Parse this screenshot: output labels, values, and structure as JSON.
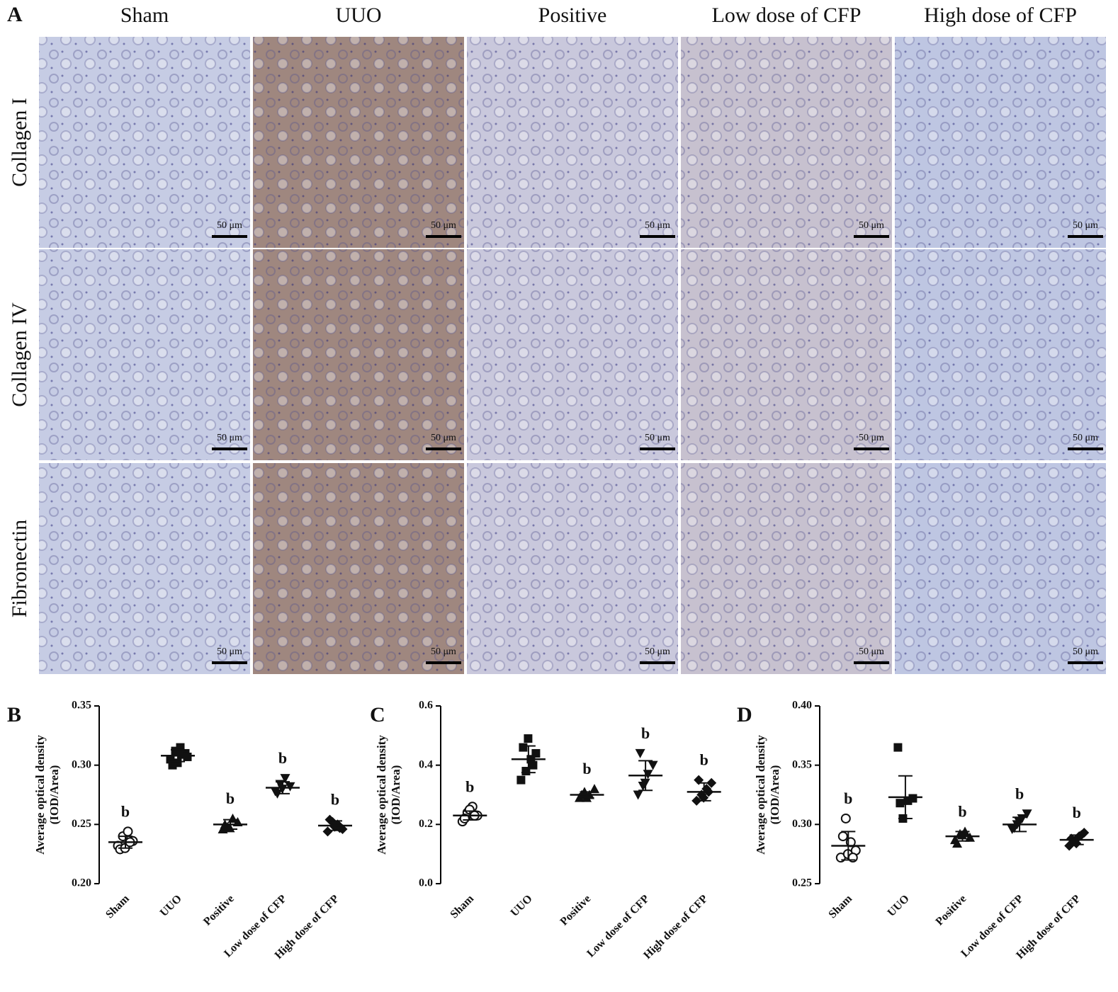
{
  "panel_a": {
    "label": "A",
    "columns": [
      "Sham",
      "UUO",
      "Positive",
      "Low dose of CFP",
      "High dose of CFP"
    ],
    "rows": [
      "Collagen I",
      "Collagen IV",
      "Fibronectin"
    ],
    "scale_bar": "50 μm"
  },
  "chart_data": [
    {
      "type": "dot",
      "panel_label": "B",
      "ylabel": [
        "Average optical density",
        "(IOD/Area)"
      ],
      "categories": [
        "Sham",
        "UUO",
        "Positive",
        "Low dose of CFP",
        "High dose of CFP"
      ],
      "markers": [
        "circle-open",
        "square",
        "triangle",
        "triangle-down",
        "diamond"
      ],
      "points": [
        [
          0.232,
          0.24,
          0.244,
          0.236,
          0.229,
          0.23,
          0.235
        ],
        [
          0.305,
          0.312,
          0.315,
          0.31,
          0.3,
          0.302,
          0.309,
          0.307
        ],
        [
          0.246,
          0.248,
          0.255,
          0.252,
          0.25,
          0.247
        ],
        [
          0.278,
          0.284,
          0.289,
          0.282,
          0.276,
          0.28
        ],
        [
          0.244,
          0.252,
          0.25,
          0.246,
          0.254,
          0.248,
          0.247
        ]
      ],
      "means": [
        0.235,
        0.308,
        0.25,
        0.281,
        0.249
      ],
      "sd": [
        0.005,
        0.005,
        0.004,
        0.005,
        0.004
      ],
      "annotations": [
        "b",
        null,
        "b",
        "b",
        "b"
      ],
      "ylim": [
        0.2,
        0.35
      ],
      "yticks": [
        {
          "value": 0.2,
          "label": "0.20"
        },
        0.25,
        {
          "value": 0.3,
          "label": "0.30"
        },
        0.35
      ],
      "color": "#111111"
    },
    {
      "type": "dot",
      "panel_label": "C",
      "ylabel": [
        "Average optical density",
        "(IOD/Area)"
      ],
      "categories": [
        "Sham",
        "UUO",
        "Positive",
        "Low dose of CFP",
        "High dose of CFP"
      ],
      "markers": [
        "circle-open",
        "square",
        "triangle",
        "triangle-down",
        "diamond"
      ],
      "points": [
        [
          0.21,
          0.24,
          0.26,
          0.23,
          0.22,
          0.25,
          0.23
        ],
        [
          0.35,
          0.38,
          0.42,
          0.44,
          0.46,
          0.49,
          0.4
        ],
        [
          0.29,
          0.31,
          0.3,
          0.32,
          0.3,
          0.29
        ],
        [
          0.3,
          0.33,
          0.37,
          0.4,
          0.44,
          0.34
        ],
        [
          0.28,
          0.3,
          0.32,
          0.34,
          0.35,
          0.29,
          0.31
        ]
      ],
      "means": [
        0.23,
        0.42,
        0.3,
        0.365,
        0.31
      ],
      "sd": [
        0.015,
        0.045,
        0.01,
        0.05,
        0.03
      ],
      "annotations": [
        "b",
        null,
        "b",
        "b",
        "b"
      ],
      "ylim": [
        0,
        0.6
      ],
      "yticks": [
        {
          "value": 0,
          "label": "0.0"
        },
        0.2,
        0.4,
        0.6
      ],
      "color": "#111111"
    },
    {
      "type": "dot",
      "panel_label": "D",
      "ylabel": [
        "Average optical density",
        "(IOD/Area)"
      ],
      "categories": [
        "Sham",
        "UUO",
        "Positive",
        "Low dose of CFP",
        "High dose of CFP"
      ],
      "markers": [
        "circle-open",
        "square",
        "triangle",
        "triangle-down",
        "diamond"
      ],
      "points": [
        [
          0.272,
          0.305,
          0.285,
          0.278,
          0.29,
          0.275,
          0.272
        ],
        [
          0.365,
          0.305,
          0.32,
          0.322,
          0.318
        ],
        [
          0.287,
          0.292,
          0.294,
          0.289,
          0.284,
          0.291
        ],
        [
          0.296,
          0.3,
          0.305,
          0.309,
          0.297,
          0.302
        ],
        [
          0.282,
          0.286,
          0.29,
          0.293,
          0.288,
          0.284,
          0.291
        ]
      ],
      "means": [
        0.282,
        0.323,
        0.29,
        0.3,
        0.287
      ],
      "sd": [
        0.012,
        0.018,
        0.004,
        0.006,
        0.004
      ],
      "annotations": [
        "b",
        null,
        "b",
        "b",
        "b"
      ],
      "ylim": [
        0.25,
        0.4
      ],
      "yticks": [
        0.25,
        {
          "value": 0.3,
          "label": "0.30"
        },
        0.35,
        {
          "value": 0.4,
          "label": "0.40"
        }
      ],
      "color": "#111111"
    }
  ]
}
